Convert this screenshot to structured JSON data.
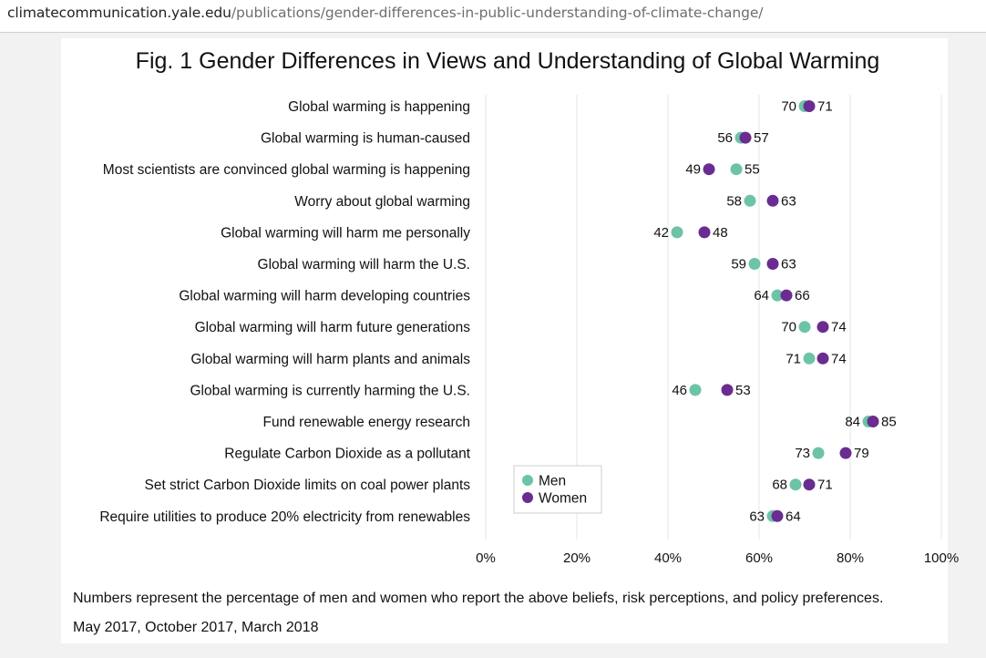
{
  "browser": {
    "url_domain": "climatecommunication.yale.edu",
    "url_path": "/publications/gender-differences-in-public-understanding-of-climate-change/"
  },
  "chart_data": {
    "type": "scatter",
    "subtype": "dot-plot",
    "title": "Fig. 1 Gender Differences in Views and Understanding of Global Warming",
    "categories": [
      "Global warming is happening",
      "Global warming is human-caused",
      "Most scientists are convinced global warming is happening",
      "Worry about global warming",
      "Global warming will harm me personally",
      "Global warming will harm the U.S.",
      "Global warming will harm developing countries",
      "Global warming will harm future generations",
      "Global warming will harm plants and animals",
      "Global warming is currently harming the U.S.",
      "Fund renewable energy research",
      "Regulate Carbon Dioxide as a pollutant",
      "Set strict Carbon Dioxide limits on coal power plants",
      "Require utilities to produce 20% electricity from renewables"
    ],
    "series": [
      {
        "name": "Men",
        "color": "#6cc3a8",
        "values": [
          70,
          56,
          55,
          58,
          42,
          59,
          64,
          70,
          71,
          46,
          84,
          73,
          68,
          63
        ]
      },
      {
        "name": "Women",
        "color": "#6a2c91",
        "values": [
          71,
          57,
          49,
          63,
          48,
          63,
          66,
          74,
          74,
          53,
          85,
          79,
          71,
          64
        ]
      }
    ],
    "xlim": [
      0,
      100
    ],
    "xticks": [
      0,
      20,
      40,
      60,
      80,
      100
    ],
    "xtick_labels": [
      "0%",
      "20%",
      "40%",
      "60%",
      "80%",
      "100%"
    ],
    "grid": "vertical",
    "legend": "bottom-left",
    "notes": [
      "Numbers represent the percentage of men and women who report the above beliefs, risk perceptions, and policy preferences.",
      "May 2017, October 2017, March 2018"
    ]
  }
}
